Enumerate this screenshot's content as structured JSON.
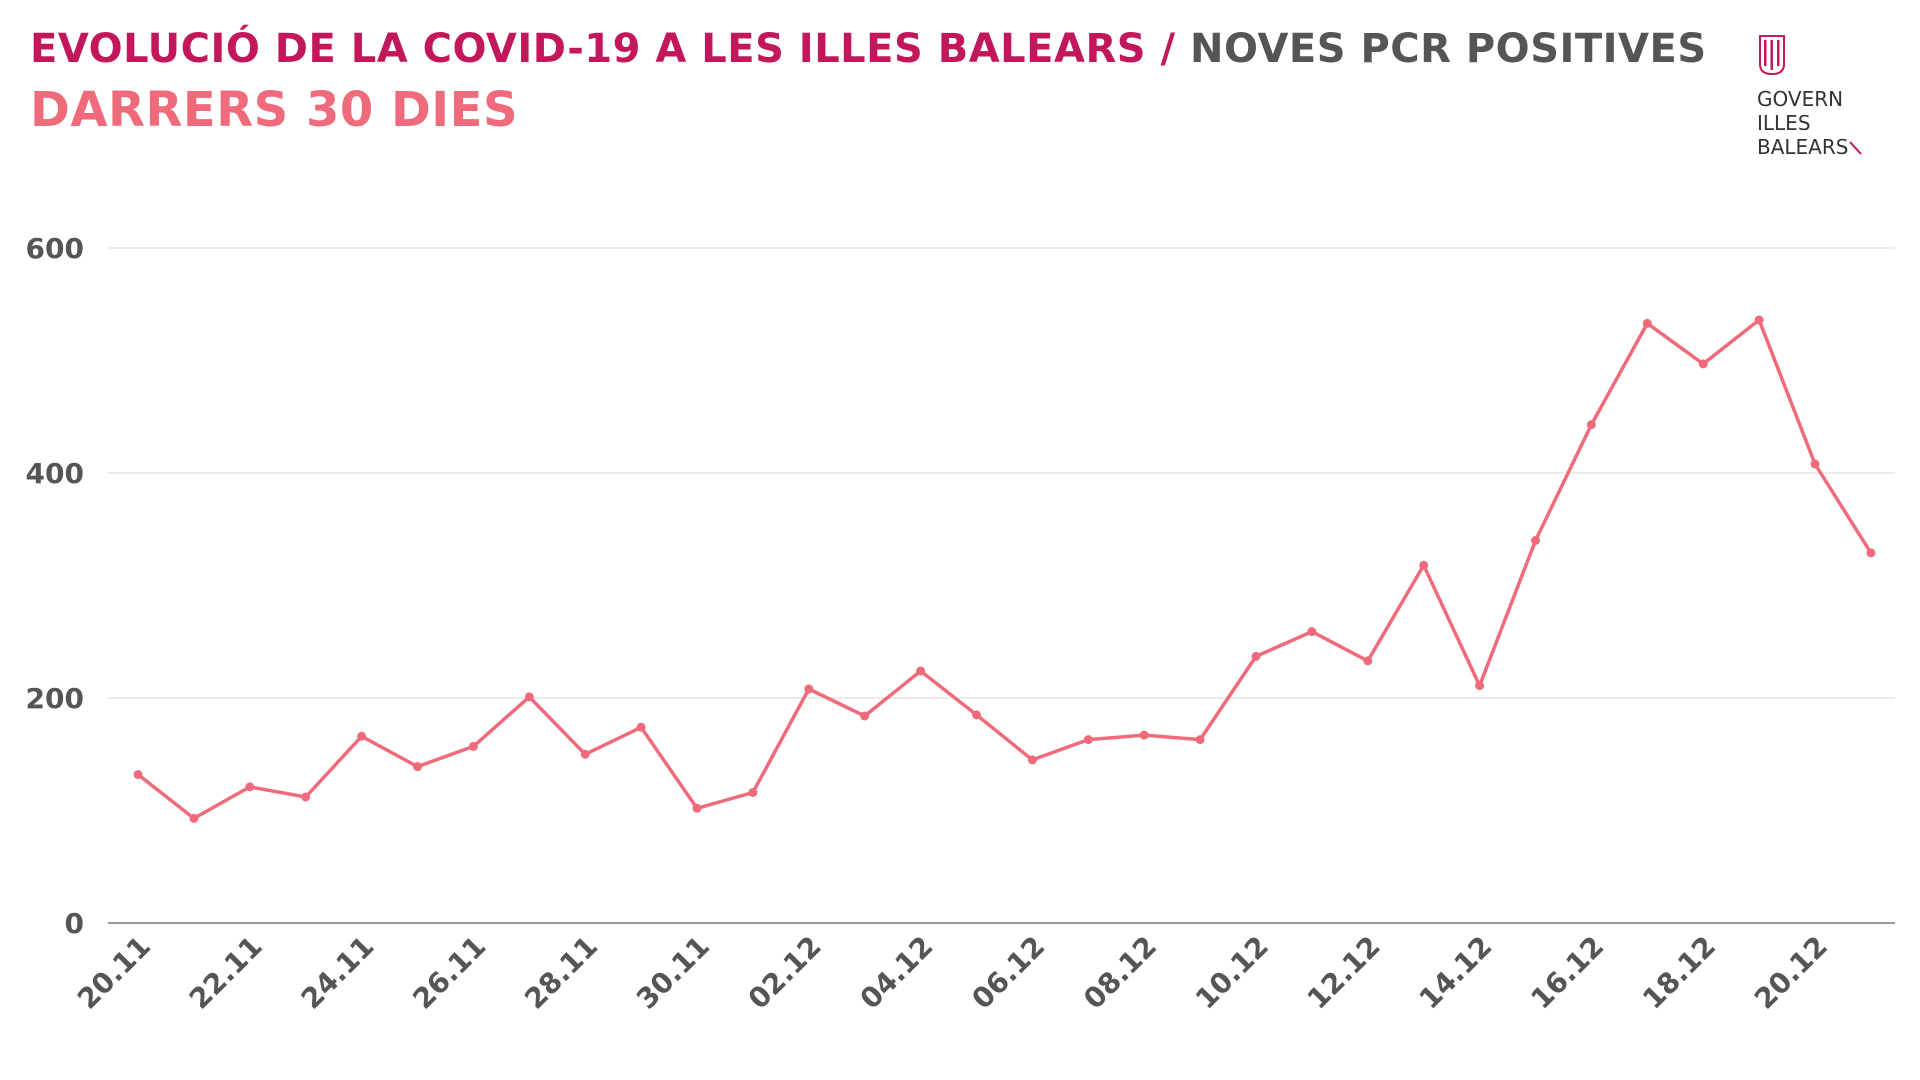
{
  "header": {
    "title_main": "EVOLUCIÓ DE LA COVID-19 A LES ILLES BALEARS",
    "title_sep": "/",
    "title_sub": "NOVES PCR POSITIVES",
    "subtitle": "DARRERS 30 DIES"
  },
  "logo": {
    "line1": "GOVERN",
    "line2": "ILLES",
    "line3": "BALEARS"
  },
  "colors": {
    "title": "#c2185b",
    "subtitle": "#ef6b7b",
    "line": "#ef6b7b",
    "text_gray": "#555555",
    "grid": "#e6e6e6"
  },
  "chart_data": {
    "type": "line",
    "x_tick_labels": [
      "20.11",
      "22.11",
      "24.11",
      "26.11",
      "28.11",
      "30.11",
      "02.12",
      "04.12",
      "06.12",
      "08.12",
      "10.12",
      "12.12",
      "14.12",
      "16.12",
      "18.12",
      "20.12"
    ],
    "x": [
      "20.11",
      "21.11",
      "22.11",
      "23.11",
      "24.11",
      "25.11",
      "26.11",
      "27.11",
      "28.11",
      "29.11",
      "30.11",
      "01.12",
      "02.12",
      "03.12",
      "04.12",
      "05.12",
      "06.12",
      "07.12",
      "08.12",
      "09.12",
      "10.12",
      "11.12",
      "12.12",
      "13.12",
      "14.12",
      "15.12",
      "16.12",
      "17.12",
      "18.12",
      "19.12",
      "20.12",
      "21.12"
    ],
    "values": [
      132,
      93,
      121,
      112,
      166,
      139,
      157,
      201,
      150,
      174,
      102,
      116,
      208,
      184,
      224,
      185,
      145,
      163,
      167,
      163,
      237,
      259,
      233,
      318,
      211,
      340,
      443,
      533,
      497,
      536,
      408,
      329
    ],
    "ylim": [
      0,
      600
    ],
    "y_ticks": [
      0,
      200,
      400,
      600
    ],
    "grid": true,
    "legend": "none"
  }
}
